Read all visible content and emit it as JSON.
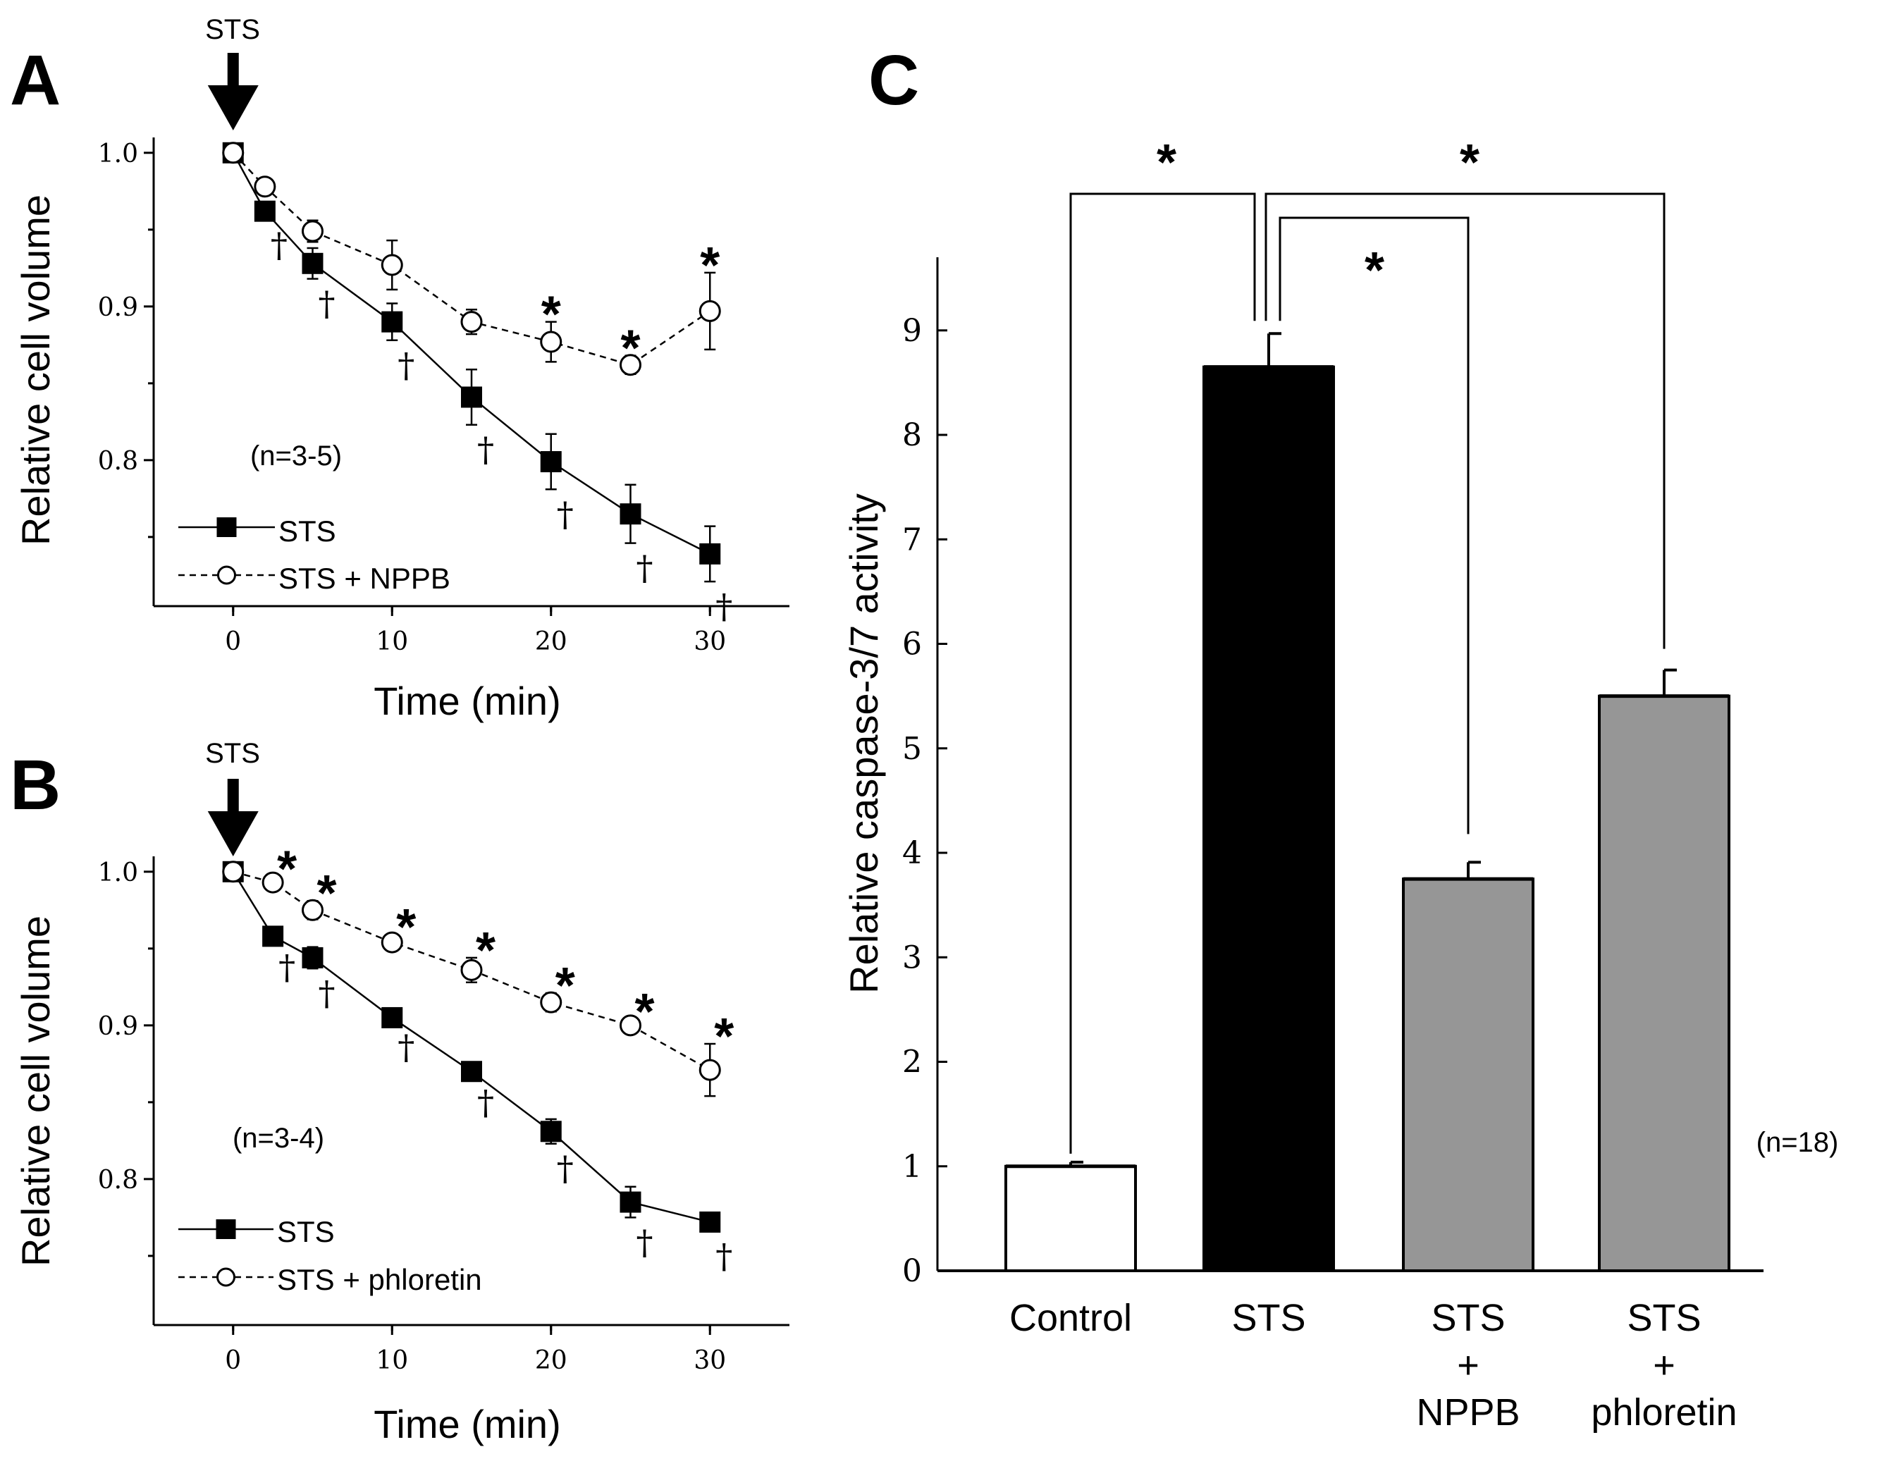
{
  "figure": {
    "panel_labels": [
      "A",
      "B",
      "C"
    ]
  },
  "chart_data": [
    {
      "panel": "A",
      "type": "line",
      "xlabel": "Time (min)",
      "ylabel": "Relative cell volume",
      "xlim": [
        -5,
        35
      ],
      "ylim": [
        0.705,
        1.01
      ],
      "xticks": [
        0,
        10,
        20,
        30
      ],
      "yticks": [
        0.8,
        0.9,
        1.0
      ],
      "xtick_labels": [
        "0",
        "10",
        "20",
        "30"
      ],
      "ytick_labels": [
        "0.8",
        "0.9",
        "1.0"
      ],
      "arrow_label": "STS",
      "note": "(n=3-5)",
      "series": [
        {
          "name": "STS",
          "marker": "filled-square",
          "line": "solid",
          "x": [
            0,
            2,
            5,
            10,
            15,
            20,
            25,
            30
          ],
          "values": [
            1.0,
            0.962,
            0.928,
            0.89,
            0.841,
            0.799,
            0.765,
            0.739
          ],
          "errors": [
            0.003,
            0.006,
            0.01,
            0.012,
            0.018,
            0.018,
            0.019,
            0.018
          ],
          "annotation_symbol": "†",
          "annotated_x": [
            2,
            5,
            10,
            15,
            20,
            25,
            30
          ]
        },
        {
          "name": "STS + NPPB",
          "marker": "open-circle",
          "line": "dashed",
          "x": [
            0,
            2,
            5,
            10,
            15,
            20,
            25,
            30
          ],
          "values": [
            1.0,
            0.978,
            0.949,
            0.927,
            0.89,
            0.877,
            0.862,
            0.897
          ],
          "errors": [
            0.003,
            0.004,
            0.007,
            0.016,
            0.008,
            0.013,
            0.006,
            0.025
          ],
          "annotation_symbol": "*",
          "annotated_x": [
            20,
            25,
            30
          ]
        }
      ]
    },
    {
      "panel": "B",
      "type": "line",
      "xlabel": "Time (min)",
      "ylabel": "Relative cell volume",
      "xlim": [
        -5,
        35
      ],
      "ylim": [
        0.705,
        1.01
      ],
      "xticks": [
        0,
        10,
        20,
        30
      ],
      "yticks": [
        0.8,
        0.9,
        1.0
      ],
      "xtick_labels": [
        "0",
        "10",
        "20",
        "30"
      ],
      "ytick_labels": [
        "0.8",
        "0.9",
        "1.0"
      ],
      "arrow_label": "STS",
      "note": "(n=3-4)",
      "series": [
        {
          "name": "STS",
          "marker": "filled-square",
          "line": "solid",
          "x": [
            0,
            2.5,
            5,
            10,
            15,
            20,
            25,
            30
          ],
          "values": [
            1.0,
            0.958,
            0.944,
            0.905,
            0.87,
            0.831,
            0.785,
            0.772
          ],
          "errors": [
            0.003,
            0.004,
            0.007,
            0.003,
            0.004,
            0.008,
            0.01,
            0.006
          ],
          "annotation_symbol": "†",
          "annotated_x": [
            2.5,
            5,
            10,
            15,
            20,
            25,
            30
          ]
        },
        {
          "name": "STS + phloretin",
          "marker": "open-circle",
          "line": "dashed",
          "x": [
            0,
            2.5,
            5,
            10,
            15,
            20,
            25,
            30
          ],
          "values": [
            1.0,
            0.993,
            0.975,
            0.954,
            0.936,
            0.915,
            0.9,
            0.871
          ],
          "errors": [
            0.003,
            0.004,
            0.006,
            0.005,
            0.008,
            0.006,
            0.004,
            0.017
          ],
          "annotation_symbol": "*",
          "annotated_x": [
            2.5,
            5,
            10,
            15,
            20,
            25,
            30
          ]
        }
      ]
    },
    {
      "panel": "C",
      "type": "bar",
      "ylabel": "Relative caspase-3/7 activity",
      "ylim": [
        0,
        9.7
      ],
      "yticks": [
        0,
        1,
        2,
        3,
        4,
        5,
        6,
        7,
        8,
        9
      ],
      "ytick_labels": [
        "0",
        "1",
        "2",
        "3",
        "4",
        "5",
        "6",
        "7",
        "8",
        "9"
      ],
      "categories": [
        [
          "Control"
        ],
        [
          "STS"
        ],
        [
          "STS",
          "+",
          "NPPB"
        ],
        [
          "STS",
          "+",
          "phloretin"
        ]
      ],
      "values": [
        1.0,
        8.65,
        3.75,
        5.5
      ],
      "errors": [
        0.04,
        0.32,
        0.16,
        0.25
      ],
      "bar_colors": [
        "#ffffff",
        "#000000",
        "#969696",
        "#969696"
      ],
      "note": "(n=18)",
      "significance": [
        {
          "groups": [
            0,
            1
          ],
          "label": "*"
        },
        {
          "groups": [
            1,
            3
          ],
          "label": "*"
        },
        {
          "groups": [
            1,
            2
          ],
          "label": "*"
        }
      ]
    }
  ]
}
